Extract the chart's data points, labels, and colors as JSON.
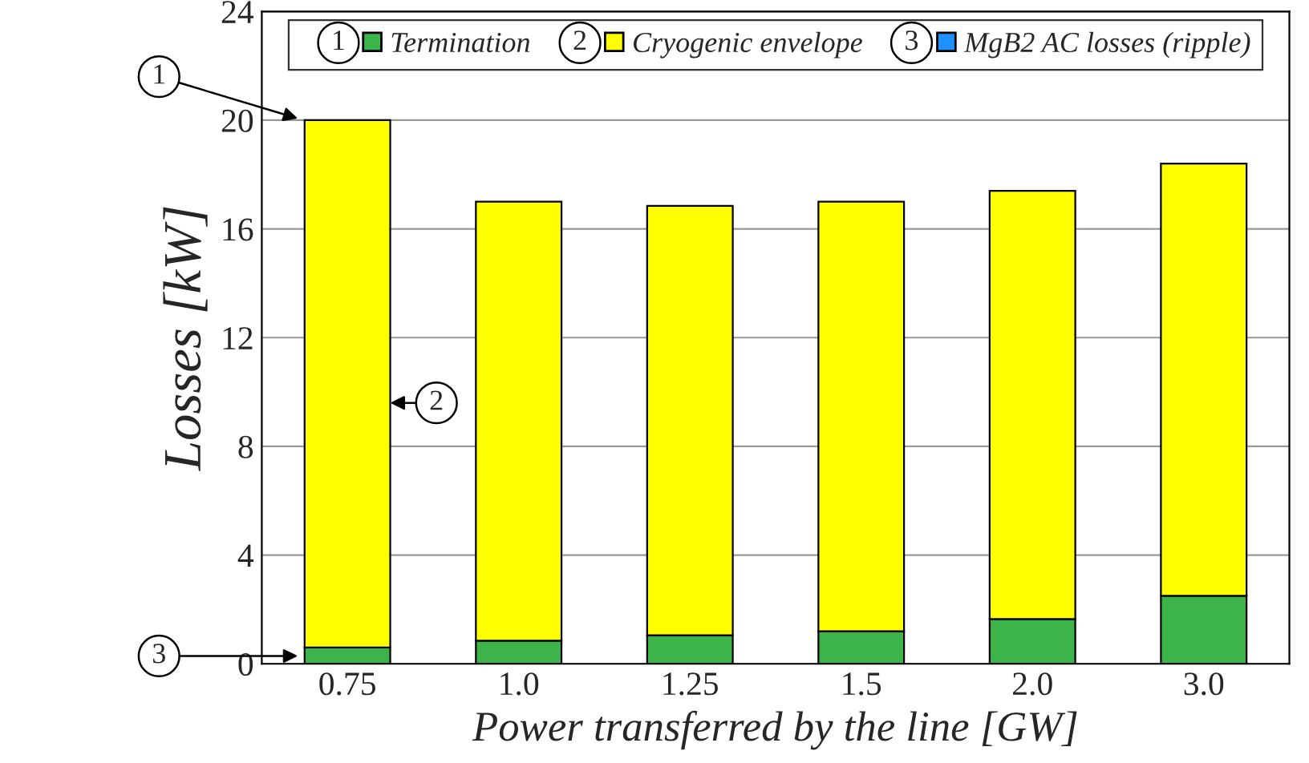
{
  "chart_data": {
    "type": "bar",
    "stacked": true,
    "xlabel": "Power transferred by the line [GW]",
    "ylabel": "Losses [kW]",
    "categories": [
      "0.75",
      "1.0",
      "1.25",
      "1.5",
      "2.0",
      "3.0"
    ],
    "series": [
      {
        "name": "Termination",
        "color": "#3cb44a",
        "values": [
          0.6,
          0.85,
          1.05,
          1.2,
          1.65,
          2.5
        ]
      },
      {
        "name": "Cryogenic envelope",
        "color": "#ffff00",
        "values": [
          19.4,
          16.15,
          15.8,
          15.8,
          15.75,
          15.9
        ]
      },
      {
        "name": "MgB2 AC losses (ripple)",
        "color": "#1e90ff",
        "values": [
          0,
          0,
          0,
          0,
          0,
          0
        ]
      }
    ],
    "ylim": [
      0,
      24
    ],
    "yticks": [
      0,
      4,
      8,
      12,
      16,
      20,
      24
    ],
    "grid": "y",
    "legend": "top",
    "annotations": [
      "1",
      "2",
      "3"
    ]
  }
}
